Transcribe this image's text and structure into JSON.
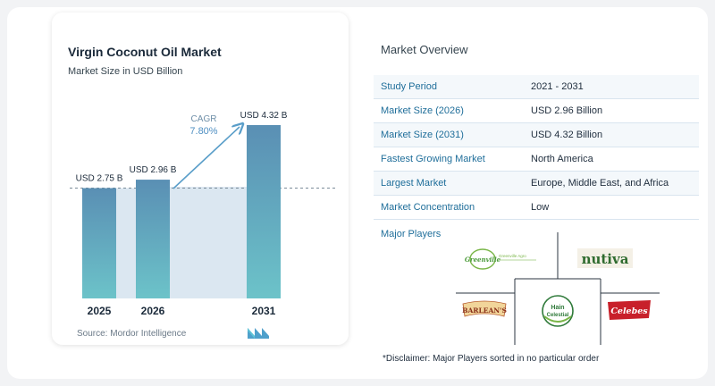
{
  "chart": {
    "title": "Virgin Coconut Oil Market",
    "subtitle": "Market Size in USD Billion",
    "source": "Source:  Mordor Intelligence",
    "cagr_label": "CAGR",
    "cagr_value": "7.80%",
    "colors": {
      "bar_top": "#5a8fb4",
      "bar_bottom": "#6cc3c9",
      "band": "#dbe7f1",
      "arrow": "#5a9ec9"
    }
  },
  "chart_data": {
    "type": "bar",
    "categories": [
      "2025",
      "2026",
      "2031"
    ],
    "values": [
      2.75,
      2.96,
      4.32
    ],
    "data_labels": [
      "USD 2.75 B",
      "USD 2.96 B",
      "USD 4.32 B"
    ],
    "title": "Virgin Coconut Oil Market",
    "subtitle": "Market Size in USD Billion",
    "xlabel": "",
    "ylabel": "",
    "ylim": [
      0,
      4.32
    ],
    "grid": false,
    "annotations": [
      "CAGR",
      "7.80%"
    ]
  },
  "overview": {
    "title": "Market Overview",
    "rows": [
      {
        "label": "Study Period",
        "value": "2021 - 2031"
      },
      {
        "label": "Market Size (2026)",
        "value": "USD 2.96 Billion"
      },
      {
        "label": "Market Size (2031)",
        "value": "USD 4.32 Billion"
      },
      {
        "label": "Fastest Growing Market",
        "value": "North America"
      },
      {
        "label": "Largest Market",
        "value": "Europe, Middle East, and Africa"
      },
      {
        "label": "Market Concentration",
        "value": "Low"
      }
    ]
  },
  "players": {
    "title": "Major Players",
    "logos": [
      {
        "name": "Greenville Agro Corporation",
        "text": "Greenville",
        "subtext": "Greenville Agro",
        "color": "#4a9a3a"
      },
      {
        "name": "Nutiva",
        "text": "nutiva",
        "color": "#2f6b2f"
      },
      {
        "name": "Barlean's",
        "text": "BARLEAN'S",
        "color": "#b4572a"
      },
      {
        "name": "Hain Celestial",
        "text": "Hain",
        "subtext": "Celestial",
        "color": "#2f7a3a"
      },
      {
        "name": "Celebes",
        "text": "Celebes",
        "color": "#c8202a"
      }
    ]
  },
  "disclaimer": "*Disclaimer: Major Players sorted in no particular order"
}
